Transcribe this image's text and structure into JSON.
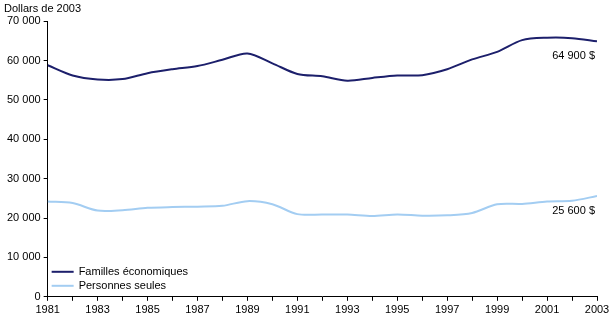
{
  "chart_data": {
    "type": "line",
    "y_label": "Dollars de 2003",
    "categories": [
      "1981",
      null,
      "1983",
      null,
      "1985",
      null,
      "1987",
      null,
      "1989",
      null,
      "1991",
      null,
      "1993",
      null,
      "1995",
      null,
      "1997",
      null,
      "1999",
      null,
      "2001",
      null,
      "2003"
    ],
    "series": [
      {
        "name": "Familles économiques",
        "color": "#1c1f6b",
        "annotation": "64 900 $",
        "values": [
          58800,
          56200,
          55200,
          55300,
          56800,
          57800,
          58600,
          60200,
          61800,
          59300,
          56600,
          56000,
          54900,
          55600,
          56200,
          56300,
          57800,
          60300,
          62200,
          65200,
          65800,
          65700,
          64900
        ]
      },
      {
        "name": "Personnes seules",
        "color": "#a3cdf2",
        "annotation": "25 600 $",
        "values": [
          24200,
          23800,
          21900,
          22000,
          22600,
          22800,
          22900,
          23100,
          24300,
          23500,
          21000,
          20900,
          20900,
          20500,
          20900,
          20600,
          20700,
          21300,
          23500,
          23600,
          24200,
          24400,
          25600
        ]
      }
    ],
    "ylim": [
      0,
      70000
    ],
    "yticks": [
      0,
      {
        "value": 10000,
        "label": "10 000"
      },
      {
        "value": 20000,
        "label": "20 000"
      },
      {
        "value": 30000,
        "label": "30 000"
      },
      {
        "value": 40000,
        "label": "40 000"
      },
      {
        "value": 50000,
        "label": "50 000"
      },
      {
        "value": 60000,
        "label": "60 000"
      },
      {
        "value": 70000,
        "label": "70 000"
      }
    ],
    "grid": false,
    "legend": "lower left"
  }
}
